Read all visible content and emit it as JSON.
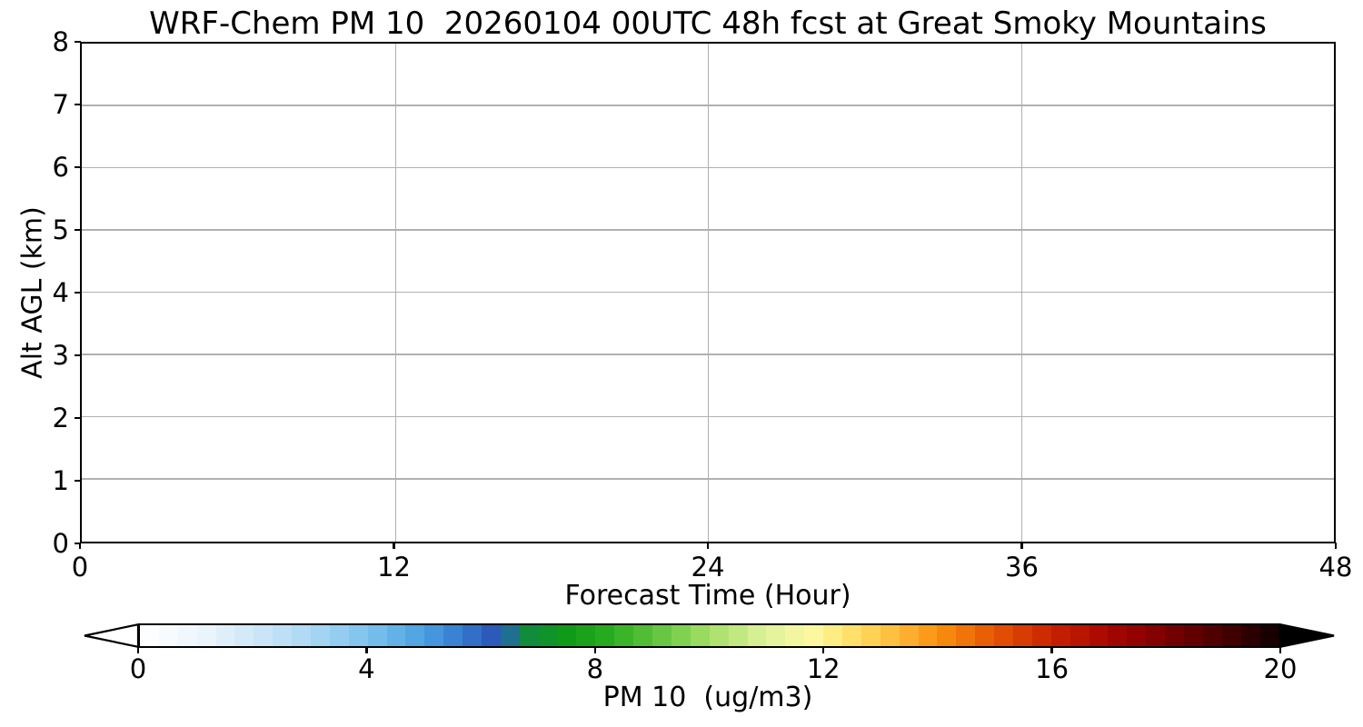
{
  "chart_data": {
    "type": "heatmap",
    "title": "WRF-Chem PM 10  20260104 00UTC 48h fcst at Great Smoky Mountains",
    "xlabel": "Forecast Time (Hour)",
    "ylabel": "Alt AGL (km)",
    "xlim": [
      0,
      48
    ],
    "ylim": [
      0,
      8
    ],
    "xticks": [
      0,
      12,
      24,
      36,
      48
    ],
    "yticks": [
      0,
      1,
      2,
      3,
      4,
      5,
      6,
      7,
      8
    ],
    "grid": true,
    "legend": "none",
    "series": [],
    "plot_area_empty": true,
    "colorbar": {
      "label": "PM 10  (ug/m3)",
      "min": 0,
      "max": 20,
      "ticks": [
        0,
        4,
        8,
        12,
        16,
        20
      ],
      "orientation": "horizontal",
      "extend": "both",
      "under_color": "#ffffff",
      "over_color": "#000000",
      "num_bands": 60,
      "color_stops": [
        [
          0,
          "#ffffff"
        ],
        [
          1,
          "#eef6fc"
        ],
        [
          2,
          "#cfe8f8"
        ],
        [
          3,
          "#abd7f3"
        ],
        [
          4,
          "#7cc3ed"
        ],
        [
          5,
          "#4aa0e0"
        ],
        [
          5.7,
          "#3478cf"
        ],
        [
          6.2,
          "#2a58ba"
        ],
        [
          6.5,
          "#1f6f90"
        ],
        [
          6.8,
          "#108b3e"
        ],
        [
          7.5,
          "#0f9a17"
        ],
        [
          8.2,
          "#27ab20"
        ],
        [
          9,
          "#5cc23a"
        ],
        [
          10,
          "#a5df68"
        ],
        [
          11,
          "#dff29a"
        ],
        [
          11.8,
          "#fdf8a3"
        ],
        [
          12.3,
          "#ffe977"
        ],
        [
          13,
          "#ffc94b"
        ],
        [
          14,
          "#fb9210"
        ],
        [
          15,
          "#e45503"
        ],
        [
          16,
          "#c92301"
        ],
        [
          17,
          "#a80600"
        ],
        [
          18,
          "#7b0000"
        ],
        [
          19,
          "#480000"
        ],
        [
          20,
          "#100000"
        ]
      ]
    }
  },
  "colors": {
    "background": "#ffffff",
    "frame": "#000000",
    "grid": "#b0b0b0",
    "text": "#000000"
  }
}
